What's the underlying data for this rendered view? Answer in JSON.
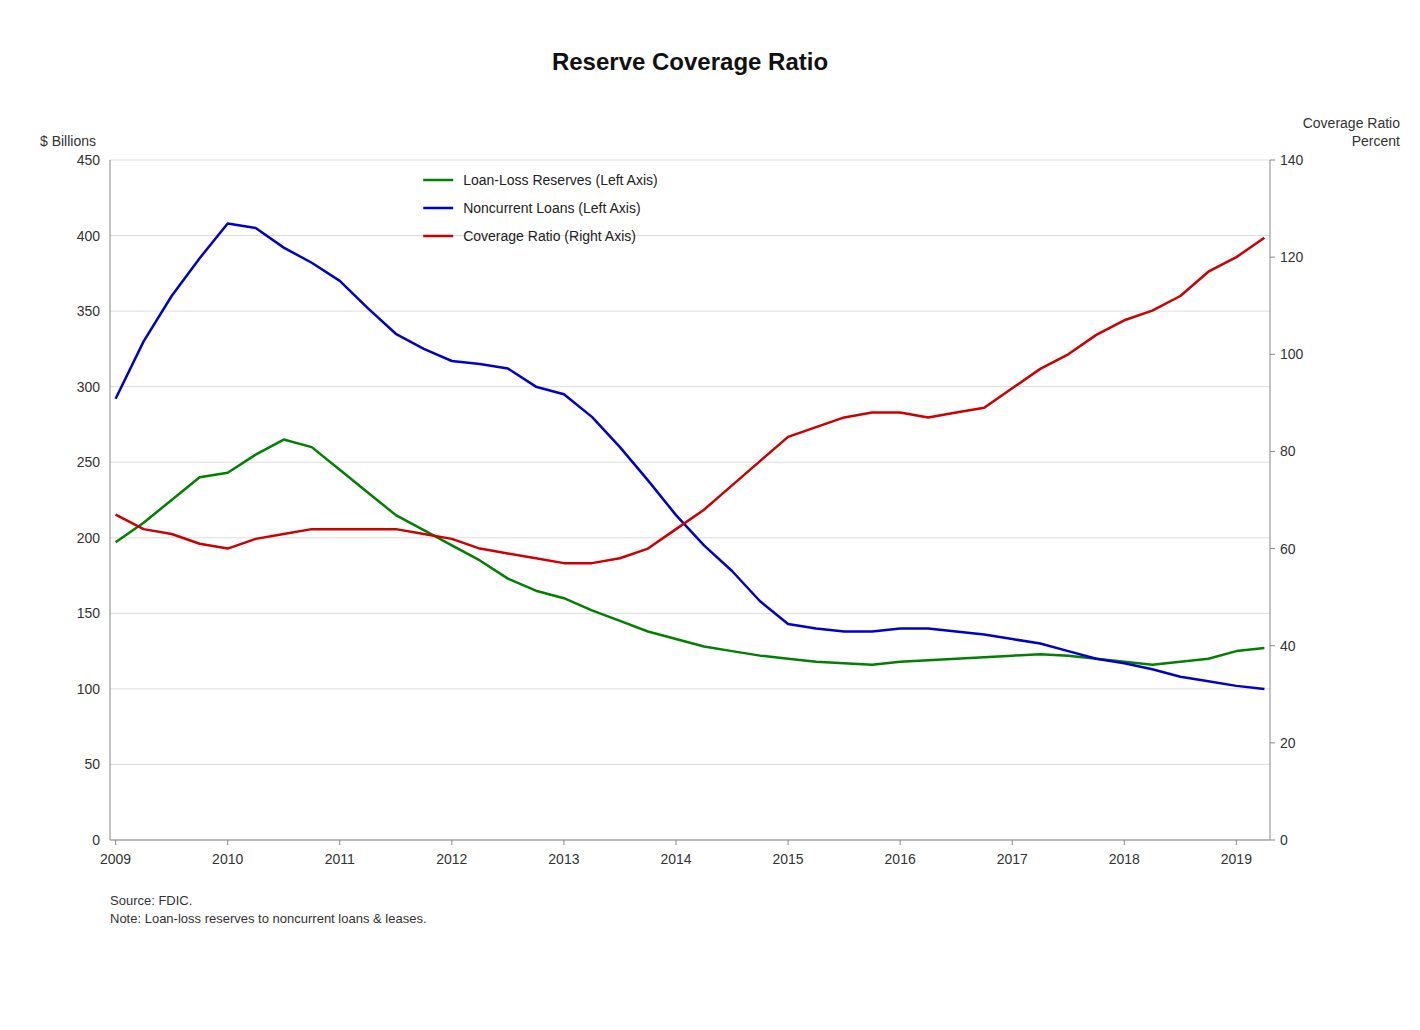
{
  "chart_data": {
    "type": "line",
    "title": "Reserve Coverage Ratio",
    "y_label": "$ Billions",
    "y2_label": "Coverage Ratio\nPercent",
    "annotations": [
      "Source: FDIC.\nNote: Loan-loss reserves to noncurrent loans & leases."
    ],
    "x": [
      2009.0,
      2009.25,
      2009.5,
      2009.75,
      2010.0,
      2010.25,
      2010.5,
      2010.75,
      2011.0,
      2011.25,
      2011.5,
      2011.75,
      2012.0,
      2012.25,
      2012.5,
      2012.75,
      2013.0,
      2013.25,
      2013.5,
      2013.75,
      2014.0,
      2014.25,
      2014.5,
      2014.75,
      2015.0,
      2015.25,
      2015.5,
      2015.75,
      2016.0,
      2016.25,
      2016.5,
      2016.75,
      2017.0,
      2017.25,
      2017.5,
      2017.75,
      2018.0,
      2018.25,
      2018.5,
      2018.75,
      2019.0,
      2019.25
    ],
    "xlim": [
      2008.95,
      2019.3
    ],
    "xticks": [
      2009,
      2010,
      2011,
      2012,
      2013,
      2014,
      2015,
      2016,
      2017,
      2018,
      2019
    ],
    "ylim": [
      0,
      450
    ],
    "yticks": [
      0,
      50,
      100,
      150,
      200,
      250,
      300,
      350,
      400,
      450
    ],
    "y2lim": [
      0,
      140
    ],
    "y2ticks": [
      0,
      20,
      40,
      60,
      80,
      100,
      120,
      140
    ],
    "grid": true,
    "legend": "top",
    "series": [
      {
        "name": "Loan-Loss Reserves (Left Axis)",
        "color": "#008000",
        "axis": "y",
        "values": [
          197,
          210,
          225,
          240,
          243,
          255,
          265,
          260,
          245,
          230,
          215,
          205,
          195,
          185,
          173,
          165,
          160,
          152,
          145,
          138,
          133,
          128,
          125,
          122,
          120,
          118,
          117,
          116,
          118,
          119,
          120,
          121,
          122,
          123,
          122,
          120,
          118,
          116,
          118,
          120,
          125,
          127
        ]
      },
      {
        "name": "Noncurrent Loans (Left Axis)",
        "color": "#0000cc",
        "axis": "y",
        "values": [
          292,
          330,
          360,
          385,
          408,
          405,
          392,
          382,
          370,
          352,
          335,
          325,
          317,
          315,
          312,
          300,
          295,
          280,
          260,
          238,
          215,
          195,
          178,
          158,
          143,
          140,
          138,
          138,
          140,
          140,
          138,
          136,
          133,
          130,
          125,
          120,
          117,
          113,
          108,
          105,
          102,
          100
        ]
      },
      {
        "name": "Coverage Ratio (Right Axis)",
        "color": "#cc0000",
        "axis": "y2",
        "values": [
          67,
          64,
          63,
          61,
          60,
          62,
          63,
          64,
          64,
          64,
          64,
          63,
          62,
          60,
          59,
          58,
          57,
          57,
          58,
          60,
          64,
          68,
          73,
          78,
          83,
          85,
          87,
          88,
          88,
          87,
          88,
          89,
          93,
          97,
          100,
          104,
          107,
          109,
          112,
          117,
          120,
          124
        ]
      }
    ]
  }
}
